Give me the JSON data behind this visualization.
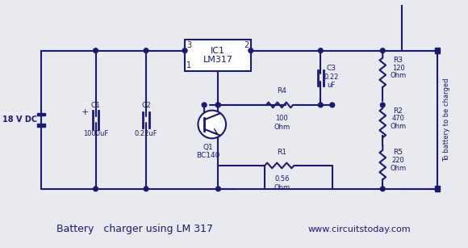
{
  "bg_color": "#e8eaf0",
  "wire_color": "#1a1a6e",
  "fill_color": "#1a1a6e",
  "title": "Battery   charger using LM 317",
  "website": "www.circuitstoday.com",
  "title_color": "#1a1a6e",
  "ic_label": "IC1\nLM317",
  "transistor_label": "Q1\nBC140",
  "components": {
    "C1": "C1\n1000uF",
    "C2": "C2\n0.22uF",
    "C3": "C3\n0.22\nuF",
    "R1": "R1\n0.56\nOhm",
    "R2": "R2\n470\nOhm",
    "R3": "R3\n120\nOhm",
    "R4": "R4\n100\nOhm",
    "R5": "R5\n220\nOhm",
    "voltage": "18 V DC",
    "battery_label": "To battery to be charged"
  }
}
